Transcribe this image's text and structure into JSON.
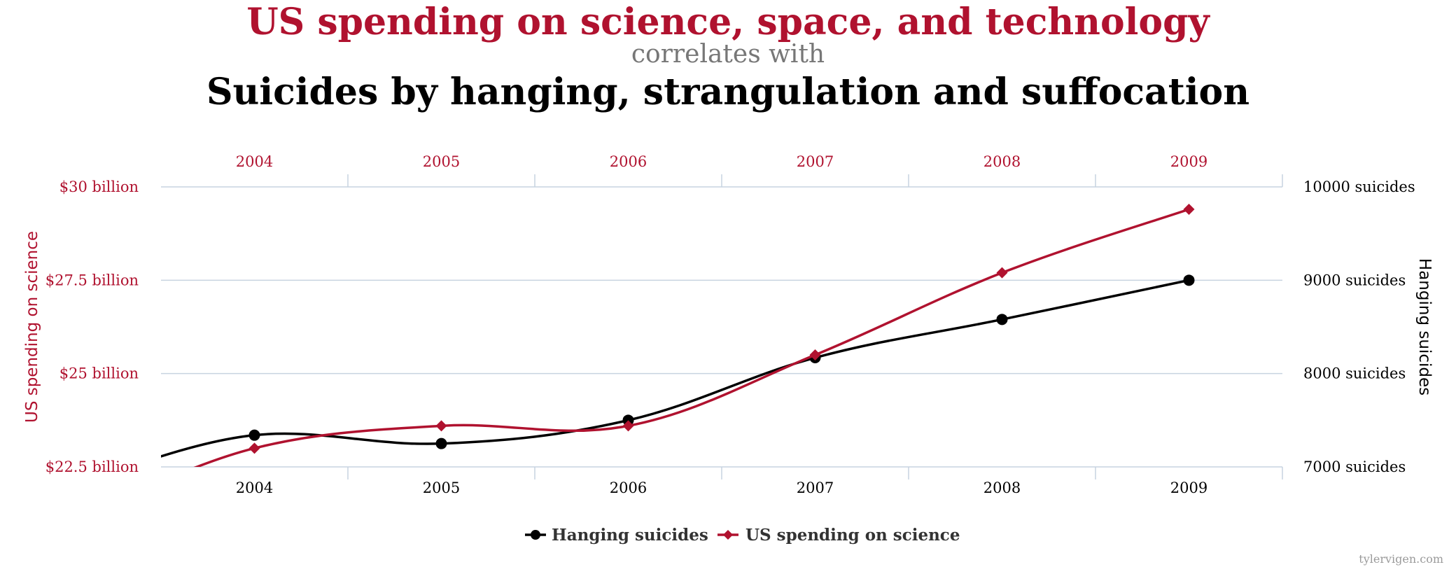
{
  "header": {
    "title": "US spending on science, space, and technology",
    "connector": "correlates with",
    "subtitle": "Suicides by hanging, strangulation and suffocation"
  },
  "credit": "tylervigen.com",
  "colors": {
    "science": "#b0122f",
    "hanging": "#000000",
    "grid": "#c7d3e0"
  },
  "chart_data": {
    "type": "line",
    "x": [
      2004,
      2005,
      2006,
      2007,
      2008,
      2009
    ],
    "x_tick_labels": [
      "2004",
      "2005",
      "2006",
      "2007",
      "2008",
      "2009"
    ],
    "left_axis": {
      "label": "US spending on science",
      "range": [
        22.5,
        30
      ],
      "ticks": [
        22.5,
        25,
        27.5,
        30
      ],
      "tick_labels": [
        "$22.5 billion",
        "$25 billion",
        "$27.5 billion",
        "$30 billion"
      ]
    },
    "right_axis": {
      "label": "Hanging suicides",
      "range": [
        7000,
        10000
      ],
      "ticks": [
        7000,
        8000,
        9000,
        10000
      ],
      "tick_labels": [
        "7000 suicides",
        "8000 suicides",
        "9000 suicides",
        "10000 suicides"
      ]
    },
    "series": [
      {
        "name": "Hanging suicides",
        "axis": "right",
        "marker": "circle",
        "values": [
          7340,
          7250,
          7500,
          8170,
          8580,
          9000
        ]
      },
      {
        "name": "US spending on science",
        "axis": "left",
        "marker": "diamond",
        "values": [
          23.0,
          23.6,
          23.6,
          25.5,
          27.7,
          29.4
        ]
      }
    ],
    "legend_position": "bottom-center",
    "grid": true
  }
}
